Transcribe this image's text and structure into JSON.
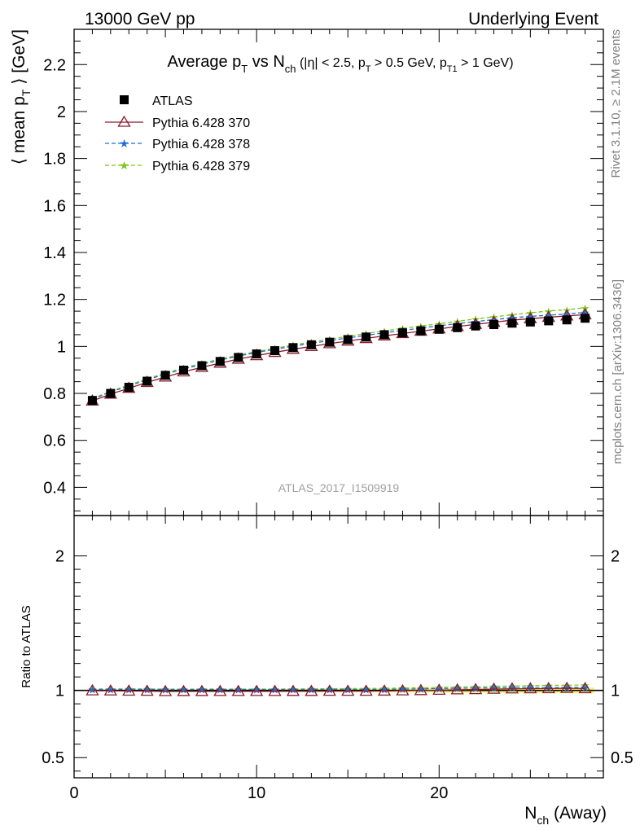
{
  "header": {
    "left": "13000 GeV pp",
    "right": "Underlying Event"
  },
  "title": {
    "prefix": "Average p",
    "prefix_sub": "T",
    "mid": " vs N",
    "mid_sub": "ch",
    "cuts_a": " (|η| < 2.5, p",
    "cuts_a_sub": "T",
    "cuts_b": " > 0.5 GeV, p",
    "cuts_b_sub": "T1",
    "cuts_c": " > 1 GeV)"
  },
  "side_labels": {
    "rivet": "Rivet 3.1.10, ≥ 2.1M events",
    "mcplots": "mcplots.cern.ch [arXiv:1306.3436]"
  },
  "analysis_label": "ATLAS_2017_I1509919",
  "axes": {
    "ylabel_main": "⟨ mean p",
    "ylabel_main_sub": "T",
    "ylabel_main_tail": " ⟩ [GeV]",
    "ylabel_ratio": "Ratio to ATLAS",
    "xlabel": "N",
    "xlabel_sub": "ch",
    "xlabel_tail": " (Away)"
  },
  "legend": [
    {
      "label": "ATLAS",
      "color": "#000000",
      "marker": "square"
    },
    {
      "label": "Pythia 6.428 370",
      "color": "#8b1a2b",
      "marker": "triangle-open"
    },
    {
      "label": "Pythia 6.428 378",
      "color": "#1f6fd6",
      "marker": "star"
    },
    {
      "label": "Pythia 6.428 379",
      "color": "#7fc31c",
      "marker": "star"
    }
  ],
  "chart_data": {
    "type": "scatter",
    "title": "Average pT vs Nch (|η| < 2.5, pT > 0.5 GeV, pT1 > 1 GeV)",
    "xlabel": "Nch (Away)",
    "ylabel": "⟨ mean pT ⟩ [GeV]",
    "xlim": [
      0,
      29
    ],
    "ylim": [
      0.28,
      2.35
    ],
    "ratio_ylim": [
      0.35,
      2.3
    ],
    "x_ticks": [
      0,
      10,
      20
    ],
    "y_ticks": [
      0.4,
      0.6,
      0.8,
      1,
      1.2,
      1.4,
      1.6,
      1.8,
      2,
      2.2
    ],
    "ratio_ticks": [
      0.5,
      1,
      2
    ],
    "x": [
      1,
      2,
      3,
      4,
      5,
      6,
      7,
      8,
      9,
      10,
      11,
      12,
      13,
      14,
      15,
      16,
      17,
      18,
      19,
      20,
      21,
      22,
      23,
      24,
      25,
      26,
      27,
      28
    ],
    "series": [
      {
        "name": "ATLAS",
        "values": [
          0.77,
          0.8,
          0.826,
          0.852,
          0.877,
          0.899,
          0.918,
          0.936,
          0.953,
          0.968,
          0.982,
          0.995,
          1.007,
          1.018,
          1.029,
          1.04,
          1.05,
          1.058,
          1.066,
          1.073,
          1.08,
          1.087,
          1.093,
          1.099,
          1.104,
          1.109,
          1.113,
          1.12
        ]
      },
      {
        "name": "Pythia 6.428 370",
        "values": [
          0.768,
          0.797,
          0.822,
          0.847,
          0.87,
          0.892,
          0.911,
          0.929,
          0.946,
          0.961,
          0.975,
          0.988,
          1.0,
          1.012,
          1.023,
          1.034,
          1.045,
          1.055,
          1.065,
          1.075,
          1.085,
          1.094,
          1.103,
          1.112,
          1.118,
          1.124,
          1.13,
          1.135
        ]
      },
      {
        "name": "Pythia 6.428 378",
        "values": [
          0.775,
          0.806,
          0.832,
          0.858,
          0.882,
          0.904,
          0.924,
          0.942,
          0.959,
          0.974,
          0.988,
          1.001,
          1.013,
          1.025,
          1.036,
          1.047,
          1.058,
          1.068,
          1.078,
          1.088,
          1.097,
          1.106,
          1.114,
          1.122,
          1.128,
          1.133,
          1.138,
          1.145
        ]
      },
      {
        "name": "Pythia 6.428 379",
        "values": [
          0.778,
          0.809,
          0.836,
          0.862,
          0.886,
          0.908,
          0.928,
          0.946,
          0.963,
          0.978,
          0.992,
          1.006,
          1.019,
          1.031,
          1.043,
          1.055,
          1.066,
          1.077,
          1.087,
          1.097,
          1.107,
          1.117,
          1.126,
          1.135,
          1.143,
          1.151,
          1.156,
          1.165
        ]
      }
    ]
  }
}
